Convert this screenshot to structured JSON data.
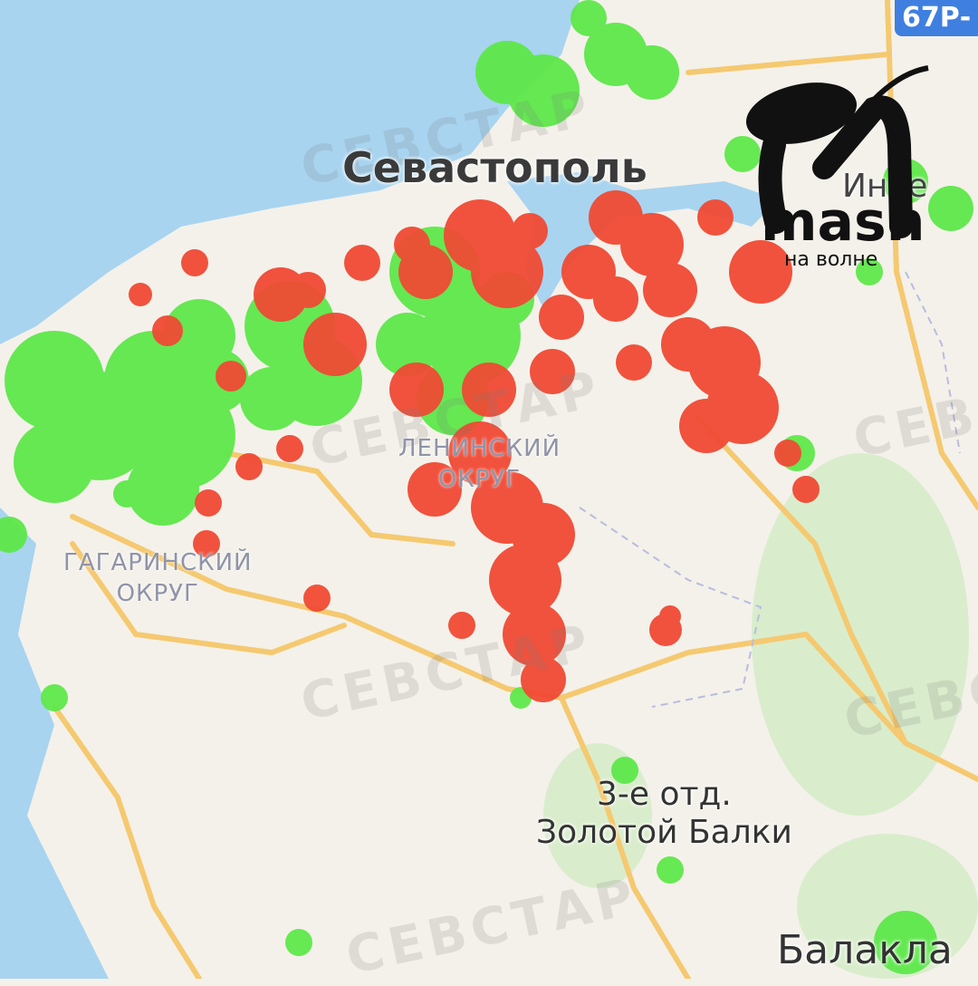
{
  "map": {
    "city_label": "Севастополь",
    "partial_label_east": "Инке",
    "districts": [
      {
        "line1": "ЛЕНИНСКИЙ",
        "line2": "ОКРУГ"
      },
      {
        "line1": "ГАГАРИНСКИЙ",
        "line2": "ОКРУГ"
      }
    ],
    "places": [
      {
        "line1": "3-е отд.",
        "line2": "Золотой Балки"
      },
      {
        "line1": "Балакла",
        "line2": ""
      }
    ],
    "road_sign": "67Р-",
    "watermark": "СЕВСТАР",
    "legend_colors": {
      "red": "#f04a34",
      "green": "#5ee84a"
    },
    "colors": {
      "sea": "#a8d4f0",
      "land": "#f4f1ea",
      "roads": "#f5c970",
      "parks": "#d6ebc9"
    }
  },
  "logo": {
    "brand": "mash",
    "subtitle": "на волне"
  }
}
